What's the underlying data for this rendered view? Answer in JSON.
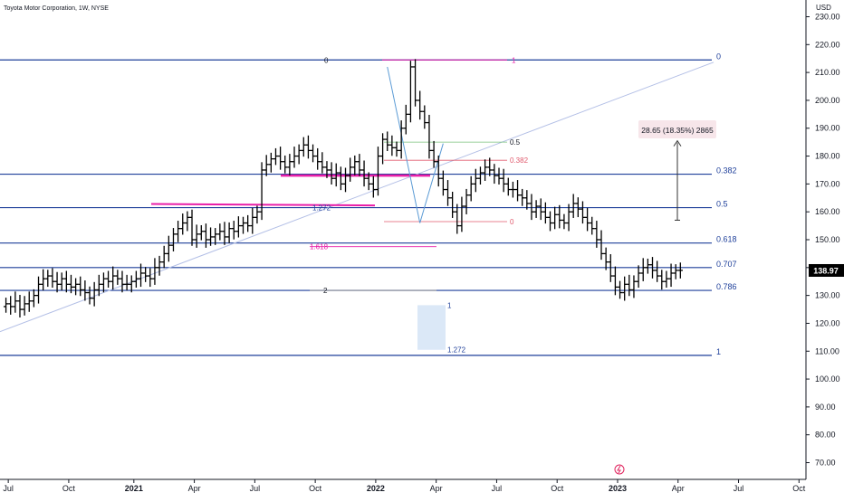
{
  "header": {
    "title": "Toyota Motor Corporation, 1W, NYSE",
    "currency": "USD"
  },
  "colors": {
    "candle": "#000000",
    "level": "#1e3f9a",
    "level_label": "#1e3f9a",
    "magenta": "#e91ea8",
    "trend": "#b3bfe6",
    "green": "#78c27a",
    "red": "#e05a6d",
    "blue_leg": "#5b9bd5",
    "range_box": "#dbe8f7",
    "price_tag_bg": "#000000",
    "price_tag_text": "#ffffff",
    "axis_text": "#131722",
    "label_pink_bg": "#f7e6ea",
    "flash": "#e0245e"
  },
  "chart_data": {
    "type": "candlestick",
    "interval": "1W",
    "ylim": [
      64,
      236
    ],
    "y_ticks": [
      70,
      80,
      90,
      100,
      110,
      120,
      130,
      140,
      150,
      160,
      170,
      180,
      190,
      200,
      210,
      220,
      230
    ],
    "y_tick_labels": [
      "70.00",
      "80.00",
      "90.00",
      "100.00",
      "110.00",
      "120.00",
      "130.00",
      "140.00",
      "150.00",
      "160.00",
      "170.00",
      "180.00",
      "190.00",
      "200.00",
      "210.00",
      "220.00",
      "230.00"
    ],
    "x_ticks": [
      {
        "label": "Jul",
        "t": 0.5
      },
      {
        "label": "Oct",
        "t": 13.5
      },
      {
        "label": "2021",
        "t": 27.5
      },
      {
        "label": "Apr",
        "t": 40.5
      },
      {
        "label": "Jul",
        "t": 53.5
      },
      {
        "label": "Oct",
        "t": 66.5
      },
      {
        "label": "2022",
        "t": 79.5
      },
      {
        "label": "Apr",
        "t": 92.5
      },
      {
        "label": "Jul",
        "t": 105.5
      },
      {
        "label": "Oct",
        "t": 118.5
      },
      {
        "label": "2023",
        "t": 131.5
      },
      {
        "label": "Apr",
        "t": 144.5
      },
      {
        "label": "Jul",
        "t": 157.5
      },
      {
        "label": "Oct",
        "t": 170.5
      }
    ],
    "x_range": [
      -0.5,
      172
    ],
    "last_price": 138.97,
    "last_price_label": "138.97",
    "weekly_closes": [
      127,
      126,
      128,
      125,
      127,
      128,
      130,
      134,
      136,
      137,
      135,
      134,
      136,
      134,
      133,
      134,
      132,
      131,
      129,
      132,
      134,
      136,
      135,
      137,
      136,
      134,
      134,
      135,
      136,
      138,
      137,
      136,
      140,
      142,
      145,
      148,
      152,
      154,
      156,
      158,
      150,
      152,
      153,
      150,
      151,
      152,
      153,
      151,
      154,
      153,
      155,
      156,
      155,
      158,
      160,
      175,
      177,
      179,
      180,
      178,
      176,
      178,
      180,
      182,
      184,
      182,
      180,
      178,
      176,
      175,
      172,
      174,
      170,
      173,
      176,
      178,
      175,
      172,
      170,
      168,
      180,
      186,
      184,
      183,
      182,
      190,
      195,
      212,
      200,
      196,
      192,
      182,
      178,
      172,
      168,
      165,
      160,
      155,
      162,
      166,
      170,
      172,
      174,
      176,
      175,
      173,
      172,
      170,
      168,
      168,
      166,
      165,
      163,
      160,
      162,
      160,
      158,
      156,
      159,
      157,
      156,
      160,
      163,
      161,
      158,
      156,
      154,
      150,
      145,
      142,
      137,
      133,
      131,
      134,
      132,
      135,
      138,
      140,
      141,
      139,
      137,
      135,
      136,
      138,
      139,
      139
    ],
    "fib_levels": [
      {
        "label": "0",
        "price": 214.5
      },
      {
        "label": "0.382",
        "price": 173.5
      },
      {
        "label": "0.5",
        "price": 161.5
      },
      {
        "label": "0.618",
        "price": 148.8
      },
      {
        "label": "0.707",
        "price": 140.0
      },
      {
        "label": "0.786",
        "price": 131.8
      },
      {
        "label": "1",
        "price": 108.5
      }
    ],
    "inner_fib_labels": [
      {
        "label": "0",
        "price": 214.5,
        "color": "axis"
      },
      {
        "label": "1",
        "price": 214.5,
        "color": "magenta"
      },
      {
        "label": "0.5",
        "price": 185.0,
        "color": "axis"
      },
      {
        "label": "0.382",
        "price": 178.5,
        "color": "red"
      },
      {
        "label": "1.272",
        "price": 161.5,
        "color": "level"
      },
      {
        "label": "0",
        "price": 156.5,
        "color": "red"
      },
      {
        "label": "1.618",
        "price": 147.5,
        "color": "magenta"
      },
      {
        "label": "2",
        "price": 131.8,
        "color": "axis"
      },
      {
        "label": "1",
        "price": 126.5,
        "color": "level"
      },
      {
        "label": "1.272",
        "price": 110.5,
        "color": "level"
      }
    ],
    "measure": {
      "label": "28.65 (18.35%) 2865",
      "from": 157.0,
      "to": 185.5
    }
  }
}
